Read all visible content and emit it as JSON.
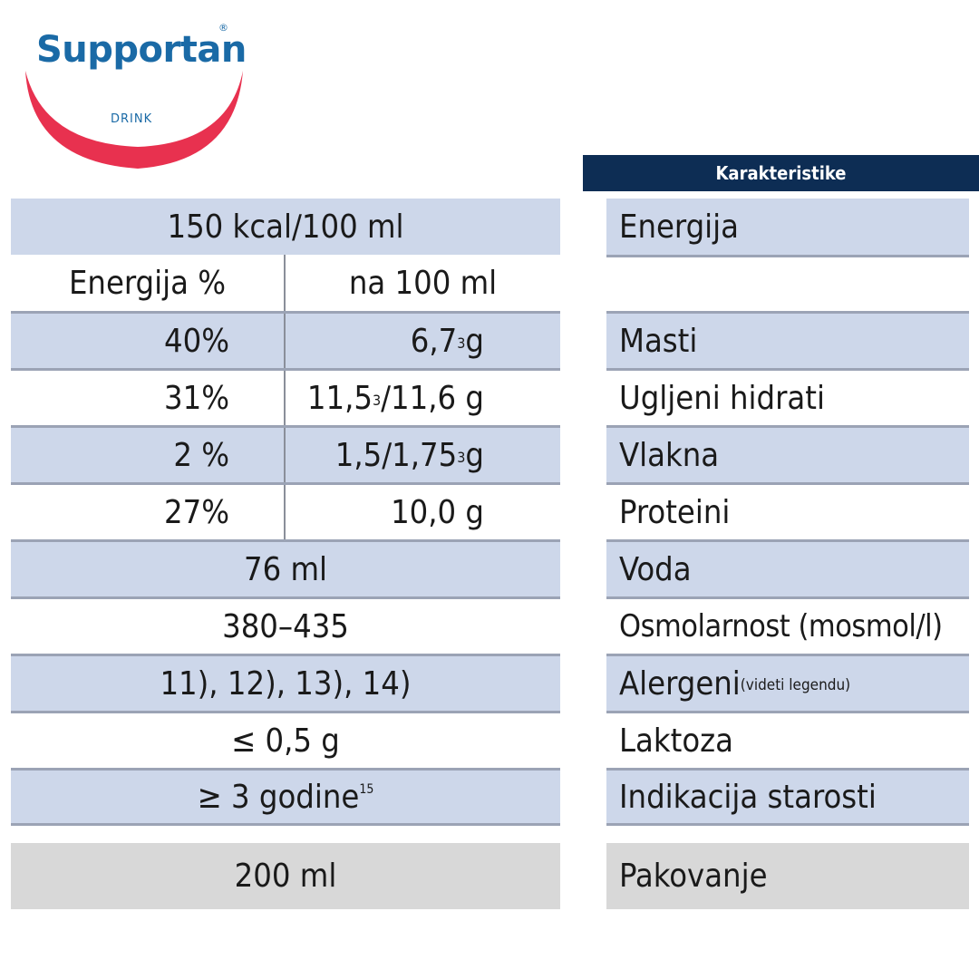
{
  "logo": {
    "brand": "Supportan",
    "reg": "®",
    "sub": "DRINK"
  },
  "left": {
    "energy_total": "150 kcal/100 ml",
    "col_headers": [
      "Energija %",
      "na 100 ml"
    ],
    "rows": [
      {
        "pct": "40%",
        "val": "6,7",
        "sup": "3",
        "val_end": " g"
      },
      {
        "pct": "31%",
        "val": "11,5",
        "sup": "3",
        "val_end": "/11,6 g"
      },
      {
        "pct": "2 %",
        "val": "1,5/1,75",
        "sup": "3",
        "val_end": " g"
      },
      {
        "pct": "27%",
        "val": "10,0 g",
        "sup": "",
        "val_end": ""
      }
    ],
    "water": "76 ml",
    "osmolarity": "380–435",
    "allergens": "11), 12), 13), 14)",
    "lactose": "≤ 0,5 g",
    "age": "≥ 3 godine",
    "age_sup": "15",
    "package": "200 ml"
  },
  "right": {
    "header": "Karakteristike",
    "energy": "Energija",
    "fat": "Masti",
    "carbs": "Ugljeni hidrati",
    "fiber": "Vlakna",
    "protein": "Proteini",
    "water": "Voda",
    "osmolarity": "Osmolarnost (mosmol/l)",
    "allergens": "Alergeni",
    "allergens_note": "(videti legendu)",
    "lactose": "Laktoza",
    "age": "Indikacija starosti",
    "package": "Pakovanje"
  }
}
